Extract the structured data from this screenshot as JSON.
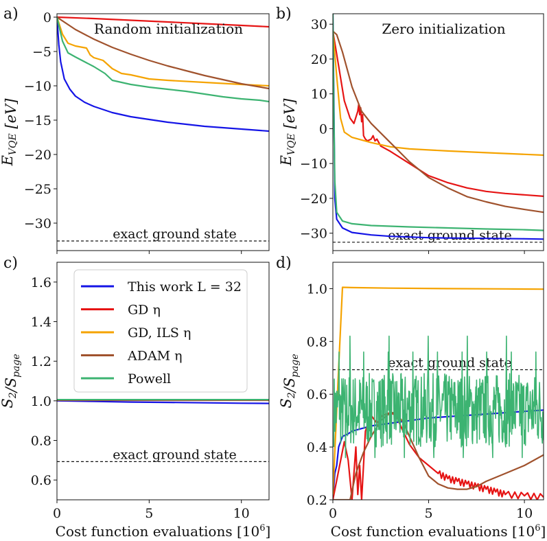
{
  "chart_data": [
    {
      "panel": "a)",
      "type": "line",
      "title": "Random initialization",
      "xlabel": "",
      "ylabel": "E_VQE [eV]",
      "xlim": [
        0,
        11.5
      ],
      "ylim": [
        -34,
        0.5
      ],
      "xticks": [
        0,
        5,
        10
      ],
      "xtick_labels": [
        "",
        "",
        ""
      ],
      "yticks": [
        0,
        -5,
        -10,
        -15,
        -20,
        -25,
        -30
      ],
      "ytick_labels": [
        "0",
        "−5",
        "−10",
        "−15",
        "−20",
        "−25",
        "−30"
      ],
      "reference": {
        "y": -32.6,
        "label": "exact ground state"
      },
      "series": [
        {
          "name": "This work L = 32",
          "color": "#1414e6",
          "x": [
            0,
            0.1,
            0.2,
            0.4,
            0.7,
            1,
            1.5,
            2,
            3,
            4,
            5,
            6,
            7,
            8,
            9,
            10,
            11.5
          ],
          "y": [
            0,
            -4,
            -6.5,
            -9,
            -10.5,
            -11.5,
            -12.4,
            -13,
            -13.9,
            -14.5,
            -14.9,
            -15.3,
            -15.6,
            -15.9,
            -16.1,
            -16.3,
            -16.6
          ]
        },
        {
          "name": "GD η",
          "color": "#e61414",
          "x": [
            0,
            2,
            4,
            6,
            8,
            10,
            11.5
          ],
          "y": [
            0,
            -0.2,
            -0.45,
            -0.7,
            -0.95,
            -1.2,
            -1.4
          ]
        },
        {
          "name": "GD, ILS η",
          "color": "#f5a300",
          "x": [
            0,
            0.3,
            0.6,
            1,
            1.6,
            1.8,
            2.0,
            2.5,
            3,
            3.5,
            4,
            5,
            6,
            8,
            10,
            11.5
          ],
          "y": [
            0,
            -2.5,
            -3.8,
            -4.2,
            -4.5,
            -5.5,
            -5.9,
            -6.3,
            -7.5,
            -8.2,
            -8.4,
            -9.0,
            -9.2,
            -9.5,
            -9.8,
            -10.0
          ]
        },
        {
          "name": "ADAM η",
          "color": "#a0522d",
          "x": [
            0,
            1,
            2,
            3,
            4,
            5,
            6,
            7,
            8,
            9,
            10,
            11.5
          ],
          "y": [
            0,
            -1.8,
            -3.2,
            -4.4,
            -5.4,
            -6.3,
            -7.1,
            -7.8,
            -8.5,
            -9.1,
            -9.7,
            -10.4
          ]
        },
        {
          "name": "Powell",
          "color": "#3cb371",
          "x": [
            0,
            0.3,
            0.6,
            1,
            1.5,
            2,
            2.6,
            3,
            4,
            5,
            6,
            7,
            8,
            9,
            10,
            11,
            11.5
          ],
          "y": [
            0,
            -3.5,
            -5.2,
            -5.8,
            -6.5,
            -7.2,
            -8.2,
            -9.2,
            -9.8,
            -10.2,
            -10.5,
            -10.8,
            -11.2,
            -11.6,
            -11.9,
            -12.1,
            -12.3
          ]
        }
      ]
    },
    {
      "panel": "b)",
      "type": "line",
      "title": "Zero initialization",
      "xlabel": "",
      "ylabel": "E_VQE [eV]",
      "xlim": [
        0,
        11
      ],
      "ylim": [
        -35,
        33
      ],
      "xticks": [
        0,
        5,
        10
      ],
      "xtick_labels": [
        "",
        "",
        ""
      ],
      "yticks": [
        30,
        20,
        10,
        0,
        -10,
        -20,
        -30
      ],
      "ytick_labels": [
        "30",
        "20",
        "10",
        "0",
        "−10",
        "−20",
        "−30"
      ],
      "reference": {
        "y": -32.6,
        "label": "exact ground state"
      },
      "series": [
        {
          "name": "This work L = 32",
          "color": "#1414e6",
          "x": [
            0,
            0.05,
            0.1,
            0.2,
            0.5,
            1,
            2,
            3,
            4,
            5,
            6,
            8,
            10,
            11
          ],
          "y": [
            33,
            10,
            -20,
            -26,
            -28.5,
            -29.8,
            -30.5,
            -30.9,
            -31.1,
            -31.3,
            -31.4,
            -31.5,
            -31.6,
            -31.7
          ]
        },
        {
          "name": "GD η",
          "color": "#e61414",
          "x": [
            0,
            0.3,
            0.6,
            0.9,
            1.1,
            1.3,
            1.35,
            1.4,
            1.45,
            1.5,
            1.55,
            1.6,
            1.7,
            1.8,
            2.0,
            2.1,
            2.2,
            2.3,
            2.5,
            3,
            4,
            5,
            6,
            7,
            8,
            9,
            10,
            11
          ],
          "y": [
            28,
            18,
            8,
            3,
            1.5,
            5,
            7,
            4,
            6,
            2,
            4,
            -2,
            -3,
            -3.5,
            -3,
            -2,
            -3.5,
            -3,
            -5,
            -6.5,
            -10,
            -13.5,
            -15.5,
            -17,
            -18,
            -18.6,
            -19,
            -19.4
          ]
        },
        {
          "name": "GD, ILS η",
          "color": "#f5a300",
          "x": [
            0,
            0.2,
            0.4,
            0.6,
            1,
            2,
            3,
            4,
            6,
            8,
            11
          ],
          "y": [
            28,
            15,
            3,
            -1,
            -2.5,
            -4,
            -5.2,
            -5.8,
            -6.4,
            -6.9,
            -7.6
          ]
        },
        {
          "name": "ADAM η",
          "color": "#a0522d",
          "x": [
            0,
            0.2,
            0.5,
            1,
            1.5,
            2,
            3,
            4,
            5,
            6,
            7,
            8,
            9,
            10,
            11
          ],
          "y": [
            28,
            27,
            22,
            12,
            5,
            1.5,
            -4,
            -9.5,
            -14,
            -17,
            -19.5,
            -21,
            -22.3,
            -23.2,
            -24
          ]
        },
        {
          "name": "Powell",
          "color": "#3cb371",
          "x": [
            0,
            0.05,
            0.1,
            0.2,
            0.5,
            1,
            2,
            3,
            4,
            6,
            8,
            10,
            11
          ],
          "y": [
            33,
            5,
            -15,
            -24,
            -26.5,
            -27.3,
            -27.8,
            -28,
            -28.2,
            -28.5,
            -28.8,
            -29,
            -29.2
          ]
        }
      ]
    },
    {
      "panel": "c)",
      "type": "line",
      "title": "",
      "xlabel": "Cost function evaluations [10^6]",
      "ylabel": "S_2/S_page",
      "xlim": [
        0,
        11.5
      ],
      "ylim": [
        0.5,
        1.7
      ],
      "xticks": [
        0,
        5,
        10
      ],
      "xtick_labels": [
        "0",
        "5",
        "10"
      ],
      "yticks": [
        0.6,
        0.8,
        1.0,
        1.2,
        1.4,
        1.6
      ],
      "ytick_labels": [
        "0.6",
        "0.8",
        "1.0",
        "1.2",
        "1.4",
        "1.6"
      ],
      "reference": {
        "y": 0.693,
        "label": "exact ground state"
      },
      "legend_position": "top-right",
      "series": [
        {
          "name": "This work L = 32",
          "color": "#1414e6",
          "x": [
            0,
            2,
            4,
            6,
            8,
            10,
            11.5
          ],
          "y": [
            1.0,
            0.997,
            0.994,
            0.992,
            0.99,
            0.988,
            0.987
          ]
        },
        {
          "name": "GD η",
          "color": "#e61414",
          "x": [
            0,
            11.5
          ],
          "y": [
            1.003,
            1.003
          ]
        },
        {
          "name": "GD, ILS η",
          "color": "#f5a300",
          "x": [
            0,
            11.5
          ],
          "y": [
            1.005,
            1.005
          ]
        },
        {
          "name": "ADAM η",
          "color": "#a0522d",
          "x": [
            0,
            11.5
          ],
          "y": [
            1.004,
            1.004
          ]
        },
        {
          "name": "Powell",
          "color": "#3cb371",
          "x": [
            0,
            11.5
          ],
          "y": [
            1.006,
            1.006
          ]
        }
      ]
    },
    {
      "panel": "d)",
      "type": "line",
      "title": "",
      "xlabel": "Cost function evaluations [10^6]",
      "ylabel": "S_2/S_page",
      "xlim": [
        0,
        11
      ],
      "ylim": [
        0.2,
        1.1
      ],
      "xticks": [
        0,
        5,
        10
      ],
      "xtick_labels": [
        "0",
        "5",
        "10"
      ],
      "yticks": [
        0.2,
        0.4,
        0.6,
        0.8,
        1.0
      ],
      "ytick_labels": [
        "0.2",
        "0.4",
        "0.6",
        "0.8",
        "1.0"
      ],
      "reference": {
        "y": 0.693,
        "label": "exact ground state"
      },
      "series": [
        {
          "name": "This work L = 32",
          "color": "#1414e6",
          "x": [
            0,
            0.1,
            0.2,
            0.3,
            0.5,
            0.8,
            1,
            1.5,
            2,
            3,
            4,
            5,
            6,
            7,
            8,
            9,
            10,
            11
          ],
          "y": [
            0.2,
            0.3,
            0.33,
            0.4,
            0.44,
            0.45,
            0.46,
            0.47,
            0.48,
            0.49,
            0.5,
            0.51,
            0.515,
            0.52,
            0.525,
            0.53,
            0.535,
            0.54
          ]
        },
        {
          "name": "GD η",
          "color": "#e61414",
          "x": [
            0,
            0.6,
            0.8,
            1.0,
            1.2,
            1.3,
            1.4,
            1.5,
            1.7,
            2.0,
            2.3,
            2.6,
            3.0,
            3.3,
            3.6,
            4.0,
            4.5,
            5.0,
            5.5,
            6.0,
            6.5,
            7.0,
            7.5,
            8.0,
            8.5,
            9,
            10,
            11
          ],
          "y": [
            0.2,
            0.42,
            0.35,
            0.2,
            0.4,
            0.22,
            0.33,
            0.2,
            0.46,
            0.52,
            0.49,
            0.52,
            0.53,
            0.52,
            0.47,
            0.41,
            0.36,
            0.33,
            0.3,
            0.28,
            0.27,
            0.26,
            0.25,
            0.24,
            0.23,
            0.22,
            0.215,
            0.21
          ]
        },
        {
          "name": "GD, ILS η",
          "color": "#f5a300",
          "x": [
            0,
            0.3,
            0.5,
            1,
            3,
            6,
            9,
            11
          ],
          "y": [
            0.22,
            0.7,
            1.005,
            1.004,
            1.002,
            1.0,
            0.999,
            0.998
          ]
        },
        {
          "name": "ADAM η",
          "color": "#a0522d",
          "x": [
            0,
            0.9,
            1.2,
            1.6,
            2.0,
            2.5,
            3.0,
            3.3,
            3.7,
            4.0,
            4.5,
            5.0,
            5.5,
            6.0,
            6.5,
            7.0,
            7.5,
            8,
            9,
            10,
            11
          ],
          "y": [
            0.2,
            0.2,
            0.3,
            0.38,
            0.44,
            0.5,
            0.53,
            0.53,
            0.49,
            0.44,
            0.36,
            0.29,
            0.26,
            0.245,
            0.24,
            0.24,
            0.25,
            0.27,
            0.3,
            0.33,
            0.37
          ]
        },
        {
          "name": "Powell",
          "color": "#3cb371",
          "x": [
            0,
            11
          ],
          "y": [
            0.5,
            0.5
          ],
          "noise": {
            "x_start": 0.05,
            "x_end": 11,
            "center": 0.54,
            "amplitude": 0.14,
            "peak": 0.82
          }
        }
      ]
    }
  ]
}
